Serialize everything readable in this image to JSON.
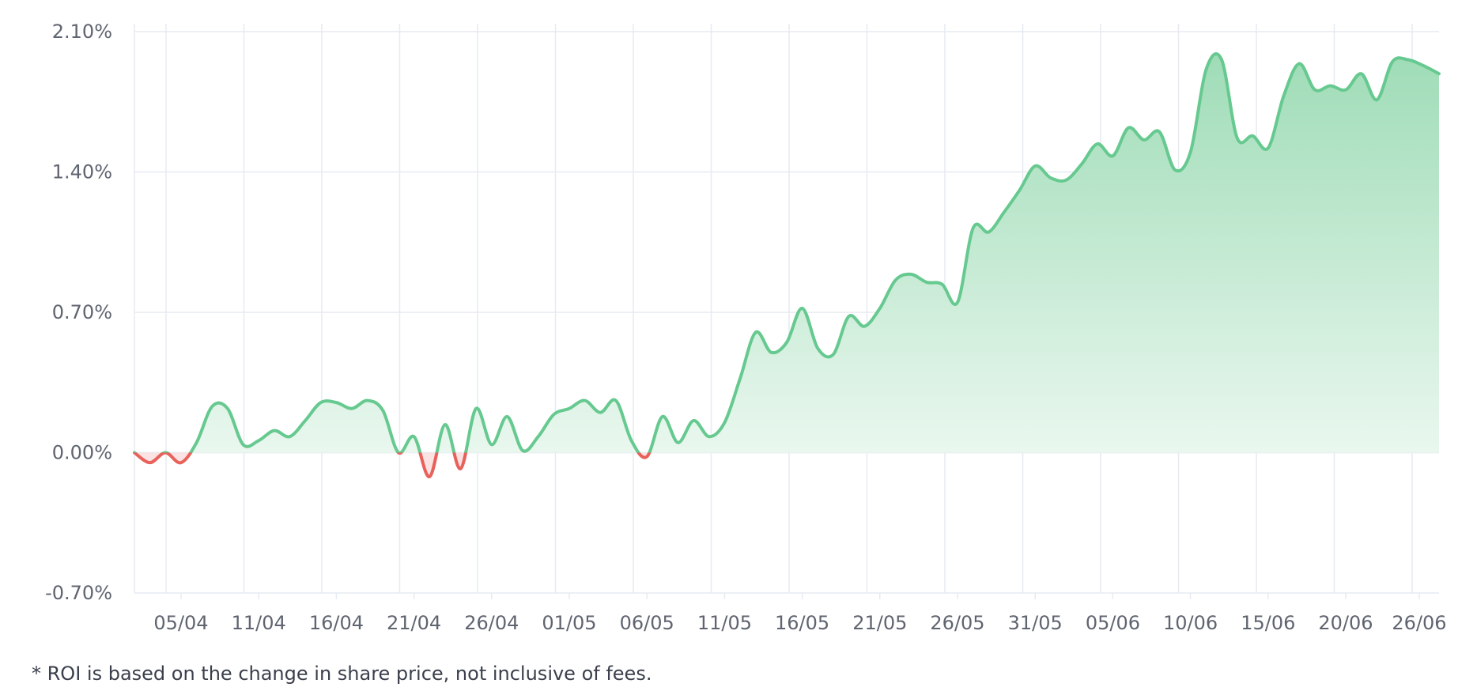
{
  "chart_data": {
    "type": "area",
    "title": "",
    "xlabel": "",
    "ylabel": "",
    "ylim": [
      -0.7,
      2.1
    ],
    "y_ticks": [
      -0.7,
      0,
      0.7,
      1.4,
      2.1
    ],
    "y_tick_labels": [
      "-0.70%",
      "0.00%",
      "0.70%",
      "1.40%",
      "2.10%"
    ],
    "x_tick_labels": [
      "05/04",
      "11/04",
      "16/04",
      "21/04",
      "26/04",
      "01/05",
      "06/05",
      "11/05",
      "16/05",
      "21/05",
      "26/05",
      "31/05",
      "05/06",
      "10/06",
      "15/06",
      "20/06",
      "26/06"
    ],
    "grid": true,
    "colors": {
      "positive_line": "#66c98f",
      "negative_line": "#e8615a",
      "positive_fill_top": "#9fdcb7",
      "positive_fill_bottom": "#eef9f2",
      "negative_fill": "#fbe3e3",
      "grid": "#e6ebf2",
      "tick_text": "#5f6470"
    },
    "series": [
      {
        "values": [
          0.0,
          -0.05,
          0.0,
          -0.05,
          0.05,
          0.23,
          0.22,
          0.04,
          0.06,
          0.11,
          0.08,
          0.16,
          0.25,
          0.25,
          0.22,
          0.26,
          0.21,
          0.0,
          0.08,
          -0.12,
          0.14,
          -0.08,
          0.22,
          0.04,
          0.18,
          0.01,
          0.08,
          0.19,
          0.22,
          0.26,
          0.2,
          0.26,
          0.06,
          -0.02,
          0.18,
          0.05,
          0.16,
          0.08,
          0.15,
          0.37,
          0.6,
          0.5,
          0.55,
          0.72,
          0.52,
          0.49,
          0.68,
          0.63,
          0.72,
          0.86,
          0.89,
          0.85,
          0.84,
          0.75,
          1.12,
          1.1,
          1.2,
          1.31,
          1.43,
          1.37,
          1.36,
          1.44,
          1.54,
          1.48,
          1.62,
          1.56,
          1.6,
          1.41,
          1.5,
          1.91,
          1.96,
          1.57,
          1.58,
          1.52,
          1.78,
          1.94,
          1.81,
          1.83,
          1.81,
          1.89,
          1.76,
          1.95,
          1.96,
          1.93,
          1.89
        ]
      }
    ]
  },
  "footnote": "* ROI is based on the change in share price, not inclusive of fees."
}
